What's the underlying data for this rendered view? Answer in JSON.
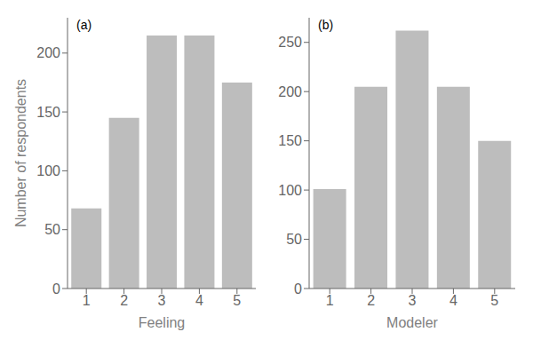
{
  "chart_data": [
    {
      "type": "bar",
      "categories": [
        "1",
        "2",
        "3",
        "4",
        "5"
      ],
      "values": [
        68,
        145,
        215,
        215,
        175
      ],
      "xlabel": "Feeling",
      "ylabel": "Number of respondents",
      "ylim": [
        0,
        230
      ],
      "yticks": [
        0,
        50,
        100,
        150,
        200
      ],
      "color": "#bdbdbd",
      "annotation": "(a)"
    },
    {
      "type": "bar",
      "categories": [
        "1",
        "2",
        "3",
        "4",
        "5"
      ],
      "values": [
        101,
        205,
        262,
        205,
        150
      ],
      "xlabel": "Modeler",
      "ylim": [
        0,
        275
      ],
      "yticks": [
        0,
        50,
        100,
        150,
        200,
        250
      ],
      "color": "#bdbdbd",
      "annotation": "(b)"
    }
  ]
}
